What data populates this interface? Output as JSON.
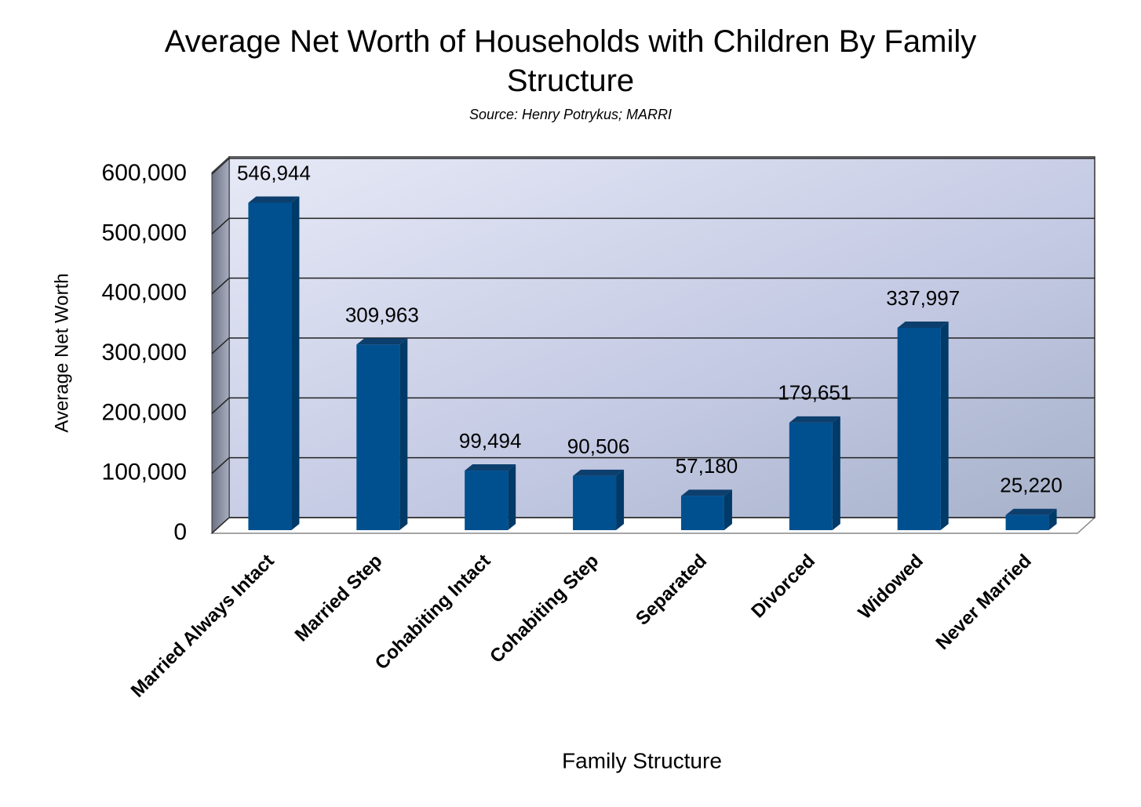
{
  "chart_data": {
    "type": "bar3d",
    "title": "Average Net Worth of Households with Children By Family Structure",
    "subtitle": "Source: Henry Potrykus; MARRI",
    "x_label": "Family Structure",
    "y_label": "Average Net Worth",
    "categories": [
      "Married Always Intact",
      "Married Step",
      "Cohabiting Intact",
      "Cohabiting Step",
      "Separated",
      "Divorced",
      "Widowed",
      "Never Married"
    ],
    "values": [
      546944,
      309963,
      99494,
      90506,
      57180,
      179651,
      337997,
      25220
    ],
    "value_labels": [
      "546,944",
      "309,963",
      "99,494",
      "90,506",
      "57,180",
      "179,651",
      "337,997",
      "25,220"
    ],
    "color": "#00508f",
    "ylim": [
      0,
      600000
    ],
    "yticks": [
      0,
      {
        "value": 100000,
        "label": "100,000"
      },
      {
        "value": 200000,
        "label": "200,000"
      },
      {
        "value": 300000,
        "label": "300,000"
      },
      {
        "value": 400000,
        "label": "400,000"
      },
      {
        "value": 500000,
        "label": "500,000"
      },
      {
        "value": 600000,
        "label": "600,000"
      }
    ],
    "grid": true
  }
}
